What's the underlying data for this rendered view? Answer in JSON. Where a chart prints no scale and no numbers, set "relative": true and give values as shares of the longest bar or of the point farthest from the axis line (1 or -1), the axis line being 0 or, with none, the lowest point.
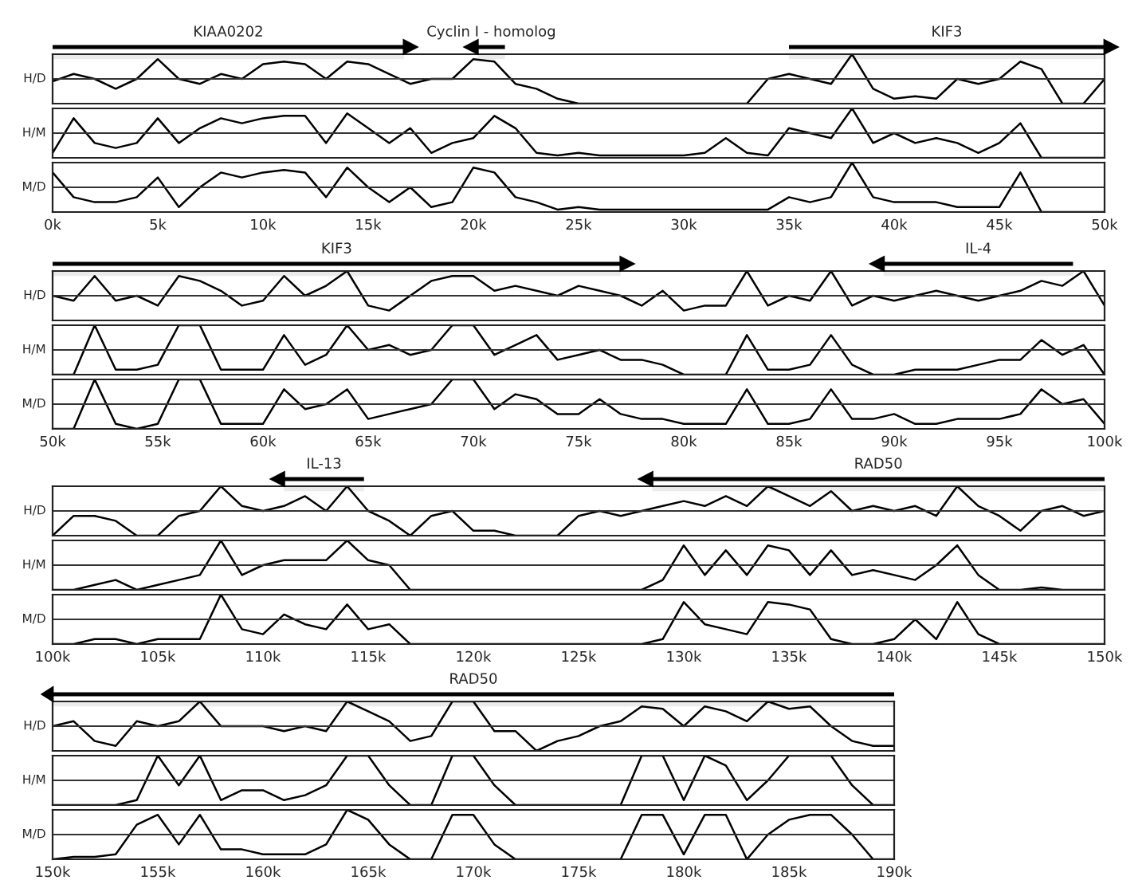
{
  "chart_data": [
    {
      "type": "line",
      "relative": true,
      "ylabel": "H/D",
      "xlim": [
        0,
        50
      ],
      "tick_labels": false,
      "color": "#000000",
      "ref_lines": [
        {
          "axis": "y",
          "value": 0.5
        }
      ],
      "bands": [
        {
          "axis": "x",
          "from": 0,
          "to": 16.7,
          "label": "KIAA0202",
          "color": "#000000"
        },
        {
          "axis": "x",
          "from": 21.5,
          "to": 20.2,
          "label": "Cyclin I - homolog",
          "color": "#000000"
        },
        {
          "axis": "x",
          "from": 35,
          "to": 50,
          "label": "KIF3",
          "color": "#000000"
        }
      ],
      "x": [
        0,
        1,
        2,
        3,
        4,
        5,
        6,
        7,
        8,
        9,
        10,
        11,
        12,
        13,
        14,
        15,
        16,
        17,
        18,
        19,
        20,
        21,
        22,
        23,
        24,
        25,
        26,
        27,
        28,
        29,
        30,
        31,
        32,
        33,
        34,
        35,
        36,
        37,
        38,
        39,
        40,
        41,
        42,
        43,
        44,
        45,
        46,
        47,
        48,
        49,
        50
      ],
      "values": [
        0.45,
        0.6,
        0.5,
        0.3,
        0.5,
        0.9,
        0.5,
        0.4,
        0.6,
        0.5,
        0.8,
        0.85,
        0.8,
        0.5,
        0.85,
        0.8,
        0.6,
        0.4,
        0.5,
        0.5,
        0.9,
        0.85,
        0.4,
        0.3,
        0.1,
        0,
        0,
        0,
        0,
        0,
        0,
        0,
        0,
        0,
        0.5,
        0.6,
        0.5,
        0.4,
        1,
        0.3,
        0.1,
        0.15,
        0.1,
        0.5,
        0.4,
        0.5,
        0.85,
        0.7,
        0,
        0,
        0.5
      ]
    },
    {
      "type": "line",
      "relative": true,
      "ylabel": "H/M",
      "xlim": [
        0,
        50
      ],
      "tick_labels": false,
      "color": "#000000",
      "ref_lines": [
        {
          "axis": "y",
          "value": 0.5
        }
      ],
      "x": [
        0,
        1,
        2,
        3,
        4,
        5,
        6,
        7,
        8,
        9,
        10,
        11,
        12,
        13,
        14,
        15,
        16,
        17,
        18,
        19,
        20,
        21,
        22,
        23,
        24,
        25,
        26,
        27,
        28,
        29,
        30,
        31,
        32,
        33,
        34,
        35,
        36,
        37,
        38,
        39,
        40,
        41,
        42,
        43,
        44,
        45,
        46,
        47,
        48,
        49,
        50
      ],
      "values": [
        0.1,
        0.8,
        0.3,
        0.2,
        0.3,
        0.8,
        0.3,
        0.6,
        0.8,
        0.7,
        0.8,
        0.85,
        0.85,
        0.3,
        0.9,
        0.6,
        0.3,
        0.6,
        0.1,
        0.3,
        0.4,
        0.85,
        0.6,
        0.1,
        0.05,
        0.1,
        0.05,
        0.05,
        0.05,
        0.05,
        0.05,
        0.1,
        0.4,
        0.1,
        0.05,
        0.6,
        0.5,
        0.4,
        1,
        0.3,
        0.5,
        0.3,
        0.4,
        0.3,
        0.1,
        0.3,
        0.7,
        0,
        0,
        0,
        0
      ]
    },
    {
      "type": "line",
      "relative": true,
      "ylabel": "M/D",
      "xlim": [
        0,
        50
      ],
      "tick_labels": "x",
      "color": "#000000",
      "ref_lines": [
        {
          "axis": "y",
          "value": 0.5
        }
      ],
      "xticks": [
        {
          "value": 0,
          "label": "0k"
        },
        {
          "value": 5,
          "label": "5k"
        },
        {
          "value": 10,
          "label": "10k"
        },
        {
          "value": 15,
          "label": "15k"
        },
        {
          "value": 20,
          "label": "20k"
        },
        {
          "value": 25,
          "label": "25k"
        },
        {
          "value": 30,
          "label": "30k"
        },
        {
          "value": 35,
          "label": "35k"
        },
        {
          "value": 40,
          "label": "40k"
        },
        {
          "value": 45,
          "label": "45k"
        },
        {
          "value": 50,
          "label": "50k"
        }
      ],
      "x": [
        0,
        1,
        2,
        3,
        4,
        5,
        6,
        7,
        8,
        9,
        10,
        11,
        12,
        13,
        14,
        15,
        16,
        17,
        18,
        19,
        20,
        21,
        22,
        23,
        24,
        25,
        26,
        27,
        28,
        29,
        30,
        31,
        32,
        33,
        34,
        35,
        36,
        37,
        38,
        39,
        40,
        41,
        42,
        43,
        44,
        45,
        46,
        47,
        48,
        49,
        50
      ],
      "values": [
        0.8,
        0.3,
        0.2,
        0.2,
        0.3,
        0.7,
        0.1,
        0.5,
        0.8,
        0.7,
        0.8,
        0.85,
        0.8,
        0.3,
        0.9,
        0.5,
        0.2,
        0.5,
        0.1,
        0.2,
        0.9,
        0.8,
        0.3,
        0.2,
        0.05,
        0.1,
        0.05,
        0.05,
        0.05,
        0.05,
        0.05,
        0.05,
        0.05,
        0.05,
        0.05,
        0.3,
        0.2,
        0.3,
        1,
        0.3,
        0.2,
        0.2,
        0.2,
        0.1,
        0.1,
        0.1,
        0.8,
        0,
        0,
        0,
        0
      ]
    },
    {
      "type": "line",
      "relative": true,
      "ylabel": "H/D",
      "xlim": [
        50,
        100
      ],
      "tick_labels": false,
      "color": "#000000",
      "ref_lines": [
        {
          "axis": "y",
          "value": 0.5
        }
      ],
      "bands": [
        {
          "axis": "x",
          "from": 50,
          "to": 77,
          "label": "KIF3",
          "color": "#000000"
        },
        {
          "axis": "x",
          "from": 98.5,
          "to": 89.5,
          "label": "IL-4",
          "color": "#000000"
        }
      ],
      "x": [
        50,
        51,
        52,
        53,
        54,
        55,
        56,
        57,
        58,
        59,
        60,
        61,
        62,
        63,
        64,
        65,
        66,
        67,
        68,
        69,
        70,
        71,
        72,
        73,
        74,
        75,
        76,
        77,
        78,
        79,
        80,
        81,
        82,
        83,
        84,
        85,
        86,
        87,
        88,
        89,
        90,
        91,
        92,
        93,
        94,
        95,
        96,
        97,
        98,
        99,
        100
      ],
      "values": [
        0.5,
        0.4,
        0.9,
        0.4,
        0.5,
        0.3,
        0.9,
        0.8,
        0.6,
        0.3,
        0.4,
        0.9,
        0.5,
        0.7,
        1,
        0.3,
        0.2,
        0.5,
        0.8,
        0.9,
        0.9,
        0.6,
        0.7,
        0.6,
        0.5,
        0.7,
        0.6,
        0.5,
        0.3,
        0.6,
        0.2,
        0.3,
        0.3,
        1,
        0.3,
        0.5,
        0.4,
        1,
        0.3,
        0.5,
        0.4,
        0.5,
        0.6,
        0.5,
        0.4,
        0.5,
        0.6,
        0.8,
        0.7,
        1,
        0.3
      ]
    },
    {
      "type": "line",
      "relative": true,
      "ylabel": "H/M",
      "xlim": [
        50,
        100
      ],
      "tick_labels": false,
      "color": "#000000",
      "ref_lines": [
        {
          "axis": "y",
          "value": 0.5
        }
      ],
      "x": [
        50,
        51,
        52,
        53,
        54,
        55,
        56,
        57,
        58,
        59,
        60,
        61,
        62,
        63,
        64,
        65,
        66,
        67,
        68,
        69,
        70,
        71,
        72,
        73,
        74,
        75,
        76,
        77,
        78,
        79,
        80,
        81,
        82,
        83,
        84,
        85,
        86,
        87,
        88,
        89,
        90,
        91,
        92,
        93,
        94,
        95,
        96,
        97,
        98,
        99,
        100
      ],
      "values": [
        0,
        0,
        1,
        0.1,
        0.1,
        0.2,
        1,
        1,
        0.1,
        0.1,
        0.1,
        0.8,
        0.2,
        0.4,
        1,
        0.5,
        0.6,
        0.4,
        0.5,
        1,
        1,
        0.4,
        0.6,
        0.8,
        0.3,
        0.4,
        0.5,
        0.3,
        0.3,
        0.2,
        0,
        0,
        0,
        0.8,
        0.1,
        0.1,
        0.2,
        0.8,
        0.2,
        0,
        0,
        0.1,
        0.1,
        0.1,
        0.2,
        0.3,
        0.3,
        0.7,
        0.4,
        0.6,
        0
      ]
    },
    {
      "type": "line",
      "relative": true,
      "ylabel": "M/D",
      "xlim": [
        50,
        100
      ],
      "tick_labels": "x",
      "color": "#000000",
      "ref_lines": [
        {
          "axis": "y",
          "value": 0.5
        }
      ],
      "xticks": [
        {
          "value": 50,
          "label": "50k"
        },
        {
          "value": 55,
          "label": "55k"
        },
        {
          "value": 60,
          "label": "60k"
        },
        {
          "value": 65,
          "label": "65k"
        },
        {
          "value": 70,
          "label": "70k"
        },
        {
          "value": 75,
          "label": "75k"
        },
        {
          "value": 80,
          "label": "80k"
        },
        {
          "value": 85,
          "label": "85k"
        },
        {
          "value": 90,
          "label": "90k"
        },
        {
          "value": 95,
          "label": "95k"
        },
        {
          "value": 100,
          "label": "100k"
        }
      ],
      "x": [
        50,
        51,
        52,
        53,
        54,
        55,
        56,
        57,
        58,
        59,
        60,
        61,
        62,
        63,
        64,
        65,
        66,
        67,
        68,
        69,
        70,
        71,
        72,
        73,
        74,
        75,
        76,
        77,
        78,
        79,
        80,
        81,
        82,
        83,
        84,
        85,
        86,
        87,
        88,
        89,
        90,
        91,
        92,
        93,
        94,
        95,
        96,
        97,
        98,
        99,
        100
      ],
      "values": [
        0,
        0,
        1,
        0.1,
        0,
        0.1,
        1,
        1,
        0.1,
        0.1,
        0.1,
        0.8,
        0.4,
        0.5,
        0.8,
        0.2,
        0.3,
        0.4,
        0.5,
        1,
        1,
        0.4,
        0.7,
        0.6,
        0.3,
        0.3,
        0.6,
        0.3,
        0.2,
        0.2,
        0.1,
        0.1,
        0.1,
        0.8,
        0.1,
        0.1,
        0.2,
        0.8,
        0.2,
        0.2,
        0.3,
        0.1,
        0.1,
        0.2,
        0.2,
        0.2,
        0.3,
        0.8,
        0.5,
        0.6,
        0.1
      ]
    },
    {
      "type": "line",
      "relative": true,
      "ylabel": "H/D",
      "xlim": [
        100,
        150
      ],
      "tick_labels": false,
      "color": "#000000",
      "ref_lines": [
        {
          "axis": "y",
          "value": 0.5
        }
      ],
      "bands": [
        {
          "axis": "x",
          "from": 114.8,
          "to": 111,
          "label": "IL-13",
          "color": "#000000"
        },
        {
          "axis": "x",
          "from": 150,
          "to": 128.5,
          "label": "RAD50",
          "color": "#000000"
        }
      ],
      "x": [
        100,
        101,
        102,
        103,
        104,
        105,
        106,
        107,
        108,
        109,
        110,
        111,
        112,
        113,
        114,
        115,
        116,
        117,
        118,
        119,
        120,
        121,
        122,
        123,
        124,
        125,
        126,
        127,
        128,
        129,
        130,
        131,
        132,
        133,
        134,
        135,
        136,
        137,
        138,
        139,
        140,
        141,
        142,
        143,
        144,
        145,
        146,
        147,
        148,
        149,
        150
      ],
      "values": [
        0,
        0.4,
        0.4,
        0.3,
        0,
        0,
        0.4,
        0.5,
        1,
        0.6,
        0.5,
        0.6,
        0.8,
        0.5,
        1,
        0.5,
        0.3,
        0,
        0.4,
        0.5,
        0.1,
        0.1,
        0,
        0,
        0,
        0.4,
        0.5,
        0.4,
        0.5,
        0.6,
        0.7,
        0.6,
        0.8,
        0.6,
        1,
        0.8,
        0.6,
        0.9,
        0.5,
        0.6,
        0.5,
        0.6,
        0.4,
        1,
        0.6,
        0.4,
        0.1,
        0.5,
        0.6,
        0.4,
        0.5
      ]
    },
    {
      "type": "line",
      "relative": true,
      "ylabel": "H/M",
      "xlim": [
        100,
        150
      ],
      "tick_labels": false,
      "color": "#000000",
      "ref_lines": [
        {
          "axis": "y",
          "value": 0.5
        }
      ],
      "x": [
        100,
        101,
        102,
        103,
        104,
        105,
        106,
        107,
        108,
        109,
        110,
        111,
        112,
        113,
        114,
        115,
        116,
        117,
        118,
        119,
        120,
        121,
        122,
        123,
        124,
        125,
        126,
        127,
        128,
        129,
        130,
        131,
        132,
        133,
        134,
        135,
        136,
        137,
        138,
        139,
        140,
        141,
        142,
        143,
        144,
        145,
        146,
        147,
        148,
        149,
        150
      ],
      "values": [
        0,
        0,
        0.1,
        0.2,
        0,
        0.1,
        0.2,
        0.3,
        1,
        0.3,
        0.5,
        0.6,
        0.6,
        0.6,
        1,
        0.6,
        0.5,
        0,
        0,
        0,
        0,
        0,
        0,
        0,
        0,
        0,
        0,
        0,
        0,
        0.2,
        0.9,
        0.3,
        0.8,
        0.3,
        0.9,
        0.8,
        0.3,
        0.8,
        0.3,
        0.4,
        0.3,
        0.2,
        0.5,
        0.9,
        0.3,
        0,
        0,
        0.05,
        0,
        0,
        0
      ]
    },
    {
      "type": "line",
      "relative": true,
      "ylabel": "M/D",
      "xlim": [
        100,
        150
      ],
      "tick_labels": "x",
      "color": "#000000",
      "ref_lines": [
        {
          "axis": "y",
          "value": 0.5
        }
      ],
      "xticks": [
        {
          "value": 100,
          "label": "100k"
        },
        {
          "value": 105,
          "label": "105k"
        },
        {
          "value": 110,
          "label": "110k"
        },
        {
          "value": 115,
          "label": "115k"
        },
        {
          "value": 120,
          "label": "120k"
        },
        {
          "value": 125,
          "label": "125k"
        },
        {
          "value": 130,
          "label": "130k"
        },
        {
          "value": 135,
          "label": "135k"
        },
        {
          "value": 140,
          "label": "140k"
        },
        {
          "value": 145,
          "label": "145k"
        },
        {
          "value": 150,
          "label": "150k"
        }
      ],
      "x": [
        100,
        101,
        102,
        103,
        104,
        105,
        106,
        107,
        108,
        109,
        110,
        111,
        112,
        113,
        114,
        115,
        116,
        117,
        118,
        119,
        120,
        121,
        122,
        123,
        124,
        125,
        126,
        127,
        128,
        129,
        130,
        131,
        132,
        133,
        134,
        135,
        136,
        137,
        138,
        139,
        140,
        141,
        142,
        143,
        144,
        145,
        146,
        147,
        148,
        149,
        150
      ],
      "values": [
        0,
        0,
        0.1,
        0.1,
        0,
        0.1,
        0.1,
        0.1,
        1,
        0.3,
        0.2,
        0.6,
        0.4,
        0.3,
        0.8,
        0.3,
        0.4,
        0,
        0,
        0,
        0,
        0,
        0,
        0,
        0,
        0,
        0,
        0,
        0,
        0.1,
        0.85,
        0.4,
        0.3,
        0.2,
        0.85,
        0.8,
        0.7,
        0.1,
        0,
        0,
        0.1,
        0.5,
        0.1,
        0.85,
        0.2,
        0,
        0,
        0,
        0,
        0,
        0
      ]
    },
    {
      "type": "line",
      "relative": true,
      "ylabel": "H/D",
      "xlim": [
        150,
        190
      ],
      "tick_labels": false,
      "color": "#000000",
      "ref_lines": [
        {
          "axis": "y",
          "value": 0.5
        }
      ],
      "bands": [
        {
          "axis": "x",
          "from": 190,
          "to": 150,
          "label": "RAD50",
          "color": "#000000"
        }
      ],
      "x": [
        150,
        151,
        152,
        153,
        154,
        155,
        156,
        157,
        158,
        159,
        160,
        161,
        162,
        163,
        164,
        165,
        166,
        167,
        168,
        169,
        170,
        171,
        172,
        173,
        174,
        175,
        176,
        177,
        178,
        179,
        180,
        181,
        182,
        183,
        184,
        185,
        186,
        187,
        188,
        189,
        190
      ],
      "values": [
        0.5,
        0.6,
        0.2,
        0.1,
        0.6,
        0.5,
        0.6,
        1,
        0.5,
        0.5,
        0.5,
        0.4,
        0.5,
        0.4,
        1,
        0.8,
        0.6,
        0.2,
        0.3,
        1,
        1,
        0.4,
        0.4,
        0,
        0.2,
        0.3,
        0.5,
        0.6,
        0.9,
        0.85,
        0.5,
        0.9,
        0.8,
        0.6,
        1,
        0.85,
        0.9,
        0.5,
        0.2,
        0.1,
        0.1
      ]
    },
    {
      "type": "line",
      "relative": true,
      "ylabel": "H/M",
      "xlim": [
        150,
        190
      ],
      "tick_labels": false,
      "color": "#000000",
      "ref_lines": [
        {
          "axis": "y",
          "value": 0.5
        }
      ],
      "x": [
        150,
        151,
        152,
        153,
        154,
        155,
        156,
        157,
        158,
        159,
        160,
        161,
        162,
        163,
        164,
        165,
        166,
        167,
        168,
        169,
        170,
        171,
        172,
        173,
        174,
        175,
        176,
        177,
        178,
        179,
        180,
        181,
        182,
        183,
        184,
        185,
        186,
        187,
        188,
        189,
        190
      ],
      "values": [
        0,
        0,
        0,
        0,
        0.1,
        1,
        0.4,
        1,
        0.1,
        0.3,
        0.3,
        0.1,
        0.2,
        0.4,
        1,
        1,
        0.4,
        0,
        0,
        1,
        1,
        0.4,
        0,
        0,
        0,
        0,
        0,
        0,
        1,
        1,
        0.1,
        1,
        0.8,
        0.1,
        0.5,
        1,
        1,
        1,
        0.4,
        0,
        0
      ]
    },
    {
      "type": "line",
      "relative": true,
      "ylabel": "M/D",
      "xlim": [
        150,
        190
      ],
      "tick_labels": "x",
      "color": "#000000",
      "ref_lines": [
        {
          "axis": "y",
          "value": 0.5
        }
      ],
      "xticks": [
        {
          "value": 150,
          "label": "150k"
        },
        {
          "value": 155,
          "label": "155k"
        },
        {
          "value": 160,
          "label": "160k"
        },
        {
          "value": 165,
          "label": "165k"
        },
        {
          "value": 170,
          "label": "170k"
        },
        {
          "value": 175,
          "label": "175k"
        },
        {
          "value": 180,
          "label": "180k"
        },
        {
          "value": 185,
          "label": "185k"
        },
        {
          "value": 190,
          "label": "190k"
        }
      ],
      "x": [
        150,
        151,
        152,
        153,
        154,
        155,
        156,
        157,
        158,
        159,
        160,
        161,
        162,
        163,
        164,
        165,
        166,
        167,
        168,
        169,
        170,
        171,
        172,
        173,
        174,
        175,
        176,
        177,
        178,
        179,
        180,
        181,
        182,
        183,
        184,
        185,
        186,
        187,
        188,
        189,
        190
      ],
      "values": [
        0,
        0.05,
        0.05,
        0.1,
        0.7,
        0.9,
        0.3,
        0.9,
        0.2,
        0.2,
        0.1,
        0.1,
        0.1,
        0.3,
        1,
        0.8,
        0.3,
        0,
        0,
        0.9,
        0.9,
        0.3,
        0,
        0,
        0,
        0,
        0,
        0,
        0.9,
        0.9,
        0.1,
        0.9,
        0.9,
        0,
        0.5,
        0.8,
        0.9,
        0.9,
        0.5,
        0,
        0
      ]
    }
  ]
}
